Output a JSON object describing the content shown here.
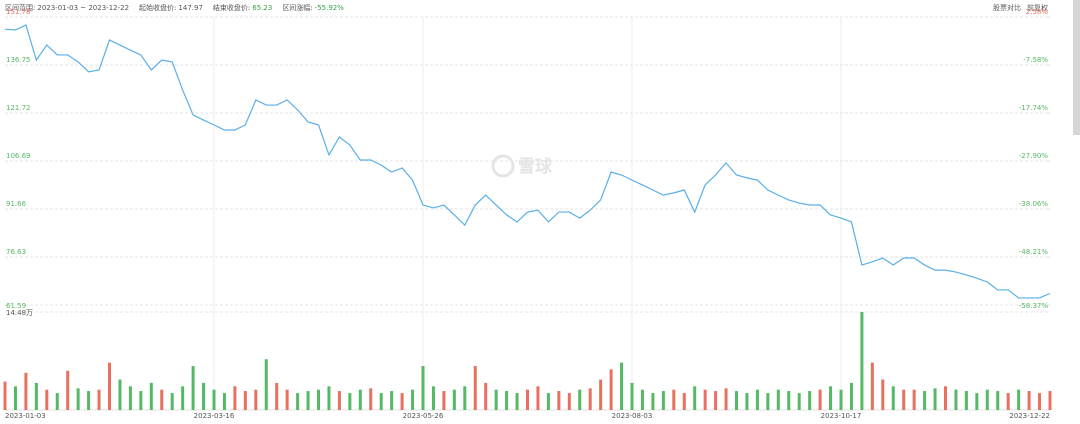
{
  "chart_data": {
    "type": "line",
    "info": [
      {
        "label": "区间范围:",
        "value": "2023-01-03 ~ 2023-12-22",
        "color": "#555555"
      },
      {
        "label": "起始收盘价:",
        "value": "147.97",
        "color": "#555555"
      },
      {
        "label": "结束收盘价:",
        "value": "65.23",
        "color": "#3aa04a"
      },
      {
        "label": "区间涨幅:",
        "value": "-55.92%",
        "color": "#3aa04a"
      }
    ],
    "toolbar": [
      "股票对比",
      "前复权"
    ],
    "watermark": "雪球",
    "categories": [
      "2023-01-03",
      null,
      null,
      null,
      null,
      null,
      null,
      null,
      null,
      null,
      null,
      null,
      null,
      null,
      null,
      null,
      null,
      null,
      null,
      null,
      "2023-03-16",
      null,
      null,
      null,
      null,
      null,
      null,
      null,
      null,
      null,
      null,
      null,
      null,
      null,
      null,
      null,
      null,
      null,
      null,
      null,
      "2023-05-26",
      null,
      null,
      null,
      null,
      null,
      null,
      null,
      null,
      null,
      null,
      null,
      null,
      null,
      null,
      null,
      null,
      null,
      null,
      null,
      "2023-08-03",
      null,
      null,
      null,
      null,
      null,
      null,
      null,
      null,
      null,
      null,
      null,
      null,
      null,
      null,
      null,
      null,
      null,
      null,
      null,
      "2023-10-17",
      null,
      null,
      null,
      null,
      null,
      null,
      null,
      null,
      null,
      null,
      null,
      null,
      null,
      null,
      null,
      null,
      null,
      null,
      null,
      "2023-12-22"
    ],
    "values": [
      147.97,
      147.7,
      149.3,
      138.3,
      143,
      139.9,
      139.9,
      137.7,
      134.6,
      135.2,
      144.6,
      143,
      141.4,
      139.9,
      135.2,
      138.3,
      137.7,
      128.9,
      121.1,
      119.5,
      118,
      116.4,
      116.4,
      118,
      125.8,
      124.2,
      124.2,
      125.8,
      122.7,
      118.9,
      118,
      108.6,
      114.2,
      111.7,
      107,
      107,
      105.4,
      103.2,
      104.5,
      100.7,
      92.9,
      92,
      92.9,
      89.8,
      86.6,
      92.9,
      96,
      92.9,
      89.8,
      87.6,
      90.7,
      91.3,
      87.6,
      90.7,
      90.7,
      88.8,
      91.3,
      94.5,
      103.2,
      102.3,
      100.7,
      99.2,
      97.6,
      96,
      96.7,
      97.6,
      90.7,
      99.2,
      102.3,
      106.1,
      102.3,
      101.4,
      100.7,
      97.6,
      96,
      94.5,
      93.5,
      92.9,
      92.9,
      89.8,
      88.8,
      87.6,
      74.1,
      75.1,
      76.3,
      74.1,
      76.3,
      76.3,
      74.1,
      72.5,
      72.5,
      71.9,
      71,
      70,
      68.8,
      66.3,
      66.3,
      63.8,
      63.8,
      63.8,
      65.23
    ],
    "color": "#5aaee8",
    "ylim": [
      61.59,
      151.78
    ],
    "yticks": [
      151.78,
      136.75,
      121.72,
      106.69,
      91.66,
      76.63,
      61.59
    ],
    "y2lim": [
      -58.37,
      2.58
    ],
    "y2ticks": [
      {
        "value": 2.58,
        "label": "2.58%"
      },
      {
        "value": -7.58,
        "label": "-7.58%"
      },
      {
        "value": -17.74,
        "label": "-17.74%"
      },
      {
        "value": -27.9,
        "label": "-27.90%"
      },
      {
        "value": -38.06,
        "label": "-38.06%"
      },
      {
        "value": -48.21,
        "label": "-48.21%"
      },
      {
        "value": -58.37,
        "label": "-58.37%"
      }
    ],
    "up_color": "#e8705f",
    "down_color": "#55b865",
    "grid": true,
    "volume": {
      "values": [
        4.2,
        3.5,
        5.5,
        4.0,
        3.0,
        2.5,
        5.8,
        3.2,
        2.8,
        3.0,
        7.0,
        4.5,
        3.5,
        2.8,
        4.0,
        3.0,
        2.5,
        3.5,
        6.5,
        4.0,
        3.0,
        2.5,
        3.5,
        2.8,
        3.0,
        7.5,
        4.0,
        3.0,
        2.5,
        2.8,
        3.0,
        3.5,
        2.8,
        2.5,
        3.0,
        3.2,
        2.5,
        2.8,
        2.5,
        3.0,
        6.5,
        3.5,
        2.8,
        3.0,
        3.5,
        6.5,
        4.0,
        3.0,
        2.8,
        2.5,
        3.0,
        3.5,
        2.5,
        2.8,
        2.5,
        3.0,
        3.2,
        4.5,
        6.0,
        7.0,
        4.0,
        3.0,
        2.5,
        2.8,
        3.0,
        2.5,
        3.5,
        3.0,
        2.8,
        3.2,
        2.8,
        2.5,
        3.0,
        2.5,
        3.0,
        2.8,
        2.5,
        2.8,
        3.0,
        3.5,
        3.0,
        4.0,
        14.48,
        7.0,
        4.5,
        3.5,
        3.0,
        3.0,
        2.8,
        3.2,
        3.5,
        3.0,
        2.8,
        2.5,
        3.0,
        2.8,
        2.5,
        3.0,
        2.8,
        2.5,
        2.8
      ],
      "ylim": [
        0,
        14.48
      ],
      "yticks": [
        {
          "value": 14.48,
          "label": "14.48万"
        }
      ]
    }
  }
}
